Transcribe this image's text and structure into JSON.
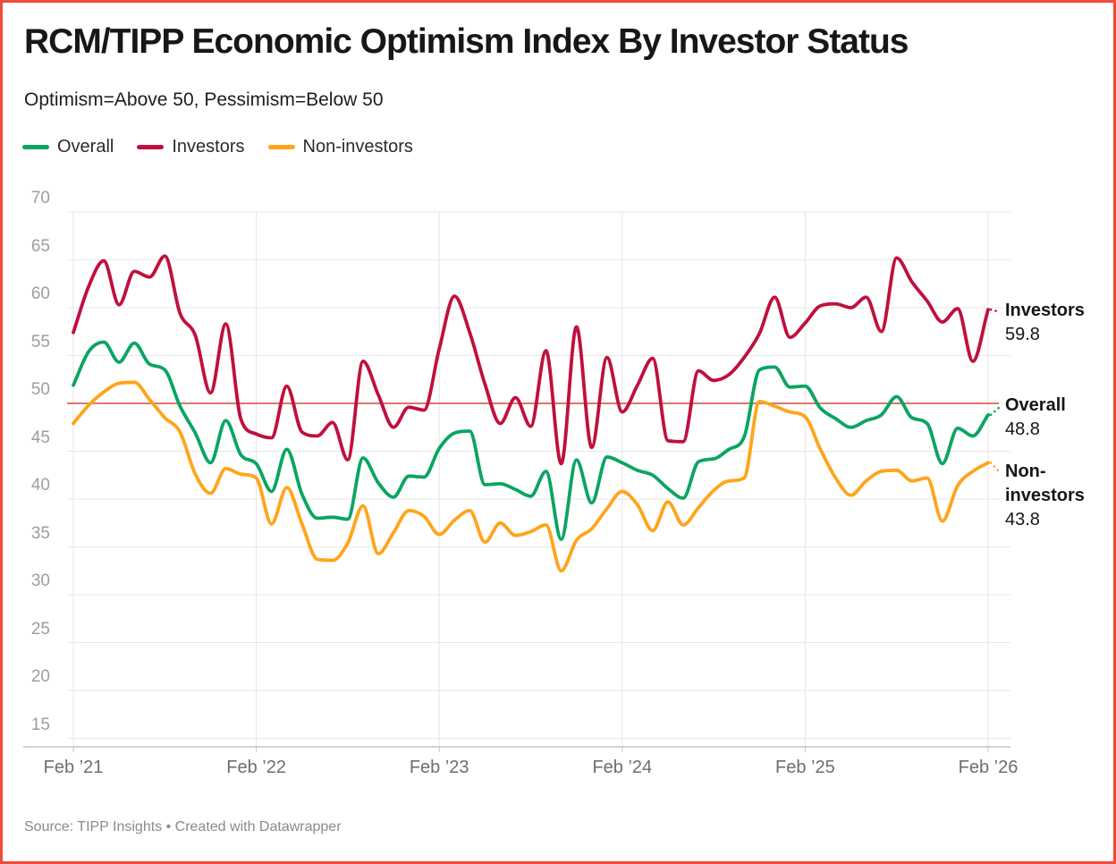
{
  "frame": {
    "border_color": "#f04a3a"
  },
  "header": {
    "title": "RCM/TIPP Economic Optimism Index By Investor Status",
    "subtitle": "Optimism=Above 50, Pessimism=Below 50"
  },
  "legend": {
    "items": [
      {
        "label": "Overall",
        "color": "#0aa562"
      },
      {
        "label": "Investors",
        "color": "#c0103d"
      },
      {
        "label": "Non-investors",
        "color": "#ffa41b"
      }
    ]
  },
  "end_labels": [
    {
      "id": "investors",
      "name": "Investors",
      "value": "59.8"
    },
    {
      "id": "overall",
      "name": "Overall",
      "value": "48.8"
    },
    {
      "id": "noninvestors",
      "name": "Non-investors",
      "value": "43.8"
    }
  ],
  "source_note": "Source: TIPP Insights • Created with Datawrapper",
  "chart_data": {
    "type": "line",
    "title": "RCM/TIPP Economic Optimism Index By Investor Status",
    "subtitle": "Optimism=Above 50, Pessimism=Below 50",
    "grid": true,
    "legend_position": "top-left",
    "ylim": [
      15,
      70
    ],
    "y_ticks": [
      70,
      65,
      60,
      55,
      50,
      45,
      40,
      35,
      30,
      25,
      20,
      15
    ],
    "x_tick_labels": [
      "Feb ’21",
      "Feb ’22",
      "Feb ’23",
      "Feb ’24",
      "Feb ’25",
      "Feb ’26"
    ],
    "x_tick_month_index": [
      0,
      12,
      24,
      36,
      48,
      60
    ],
    "reference_line": {
      "value": 50,
      "color": "#e2756a",
      "meaning": "Optimism threshold"
    },
    "months": [
      "2021-02",
      "2021-03",
      "2021-04",
      "2021-05",
      "2021-06",
      "2021-07",
      "2021-08",
      "2021-09",
      "2021-10",
      "2021-11",
      "2021-12",
      "2022-01",
      "2022-02",
      "2022-03",
      "2022-04",
      "2022-05",
      "2022-06",
      "2022-07",
      "2022-08",
      "2022-09",
      "2022-10",
      "2022-11",
      "2022-12",
      "2023-01",
      "2023-02",
      "2023-03",
      "2023-04",
      "2023-05",
      "2023-06",
      "2023-07",
      "2023-08",
      "2023-09",
      "2023-10",
      "2023-11",
      "2023-12",
      "2024-01",
      "2024-02",
      "2024-03",
      "2024-04",
      "2024-05",
      "2024-06",
      "2024-07",
      "2024-08",
      "2024-09",
      "2024-10",
      "2024-11",
      "2024-12",
      "2025-01",
      "2025-02",
      "2025-03",
      "2025-04",
      "2025-05",
      "2025-06",
      "2025-07",
      "2025-08",
      "2025-09",
      "2025-10",
      "2025-11",
      "2025-12",
      "2026-01",
      "2026-02"
    ],
    "series": [
      {
        "name": "Overall",
        "color": "#0aa562",
        "end_value": 48.8,
        "values": [
          51.9,
          55.4,
          56.4,
          54.3,
          56.3,
          54.1,
          53.5,
          49.7,
          46.9,
          43.8,
          48.2,
          44.6,
          43.7,
          40.8,
          45.2,
          40.5,
          38.0,
          38.1,
          37.9,
          44.3,
          41.7,
          40.2,
          42.4,
          42.3,
          45.3,
          46.9,
          47.1,
          41.5,
          41.6,
          41.0,
          40.3,
          42.9,
          35.8,
          44.1,
          39.6,
          44.4,
          43.8,
          43.0,
          42.5,
          41.1,
          40.1,
          43.9,
          44.2,
          45.2,
          46.5,
          53.5,
          53.8,
          51.7,
          51.8,
          49.5,
          48.4,
          47.5,
          48.2,
          48.8,
          50.7,
          48.5,
          47.9,
          43.7,
          47.4,
          46.6,
          48.8
        ]
      },
      {
        "name": "Investors",
        "color": "#c0103d",
        "end_value": 59.8,
        "values": [
          57.4,
          62.2,
          64.9,
          60.3,
          63.8,
          63.2,
          65.4,
          59.4,
          57.1,
          51.1,
          58.3,
          48.3,
          46.8,
          46.4,
          51.8,
          47.0,
          46.6,
          48.0,
          44.1,
          54.4,
          50.9,
          47.5,
          49.6,
          49.3,
          55.7,
          61.2,
          57.4,
          52.0,
          47.9,
          50.6,
          47.6,
          55.5,
          43.7,
          58.0,
          45.4,
          54.8,
          49.1,
          51.9,
          54.7,
          46.1,
          46.0,
          53.4,
          52.4,
          53.0,
          54.8,
          57.3,
          61.1,
          56.9,
          58.4,
          60.2,
          60.4,
          60.0,
          61.1,
          57.5,
          65.2,
          62.7,
          60.7,
          58.5,
          59.9,
          54.4,
          59.8
        ]
      },
      {
        "name": "Non-investors",
        "color": "#ffa41b",
        "end_value": 43.8,
        "values": [
          47.9,
          49.8,
          51.2,
          52.1,
          52.2,
          50.4,
          48.5,
          47.0,
          42.6,
          40.6,
          43.2,
          42.6,
          42.2,
          37.4,
          41.2,
          37.4,
          33.7,
          33.6,
          35.4,
          39.3,
          34.3,
          36.5,
          38.8,
          38.2,
          36.3,
          37.8,
          38.8,
          35.5,
          37.5,
          36.2,
          36.6,
          37.3,
          32.5,
          35.7,
          36.9,
          39.0,
          40.8,
          39.4,
          36.7,
          39.7,
          37.3,
          39.1,
          40.9,
          41.9,
          42.2,
          50.2,
          49.7,
          49.1,
          48.6,
          45.2,
          42.2,
          40.4,
          41.9,
          42.9,
          43.0,
          41.9,
          42.2,
          37.7,
          41.4,
          42.9,
          43.8
        ]
      }
    ]
  }
}
